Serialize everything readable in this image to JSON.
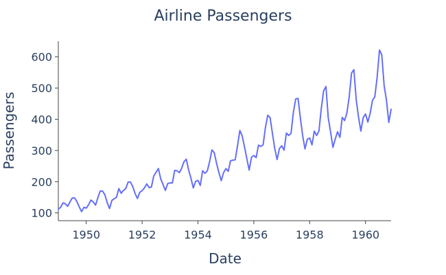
{
  "chart_data": {
    "type": "line",
    "title": "Airline Passengers",
    "xlabel": "Date",
    "ylabel": "Passengers",
    "x_start": "1949-01",
    "x_frequency": "monthly",
    "xlim": [
      "1949-01",
      "1960-12"
    ],
    "ylim": [
      75,
      650
    ],
    "grid": false,
    "legend": "none",
    "x_ticks": [
      1950,
      1952,
      1954,
      1956,
      1958,
      1960
    ],
    "y_ticks": [
      100,
      200,
      300,
      400,
      500,
      600
    ],
    "series": [
      {
        "color": "#636efa",
        "values": [
          112,
          118,
          132,
          129,
          121,
          135,
          148,
          148,
          136,
          119,
          104,
          118,
          115,
          126,
          141,
          135,
          125,
          149,
          170,
          170,
          158,
          133,
          114,
          140,
          145,
          150,
          178,
          163,
          172,
          178,
          199,
          199,
          184,
          162,
          146,
          166,
          171,
          180,
          193,
          181,
          183,
          218,
          230,
          242,
          209,
          191,
          172,
          194,
          196,
          196,
          236,
          235,
          229,
          243,
          264,
          272,
          237,
          211,
          180,
          201,
          204,
          188,
          235,
          227,
          234,
          264,
          302,
          293,
          259,
          229,
          203,
          229,
          242,
          233,
          267,
          269,
          270,
          315,
          364,
          347,
          312,
          274,
          237,
          278,
          284,
          277,
          317,
          313,
          318,
          374,
          413,
          405,
          355,
          306,
          271,
          306,
          315,
          301,
          356,
          348,
          355,
          422,
          465,
          467,
          404,
          347,
          305,
          336,
          340,
          318,
          362,
          348,
          363,
          435,
          491,
          505,
          404,
          359,
          310,
          337,
          360,
          342,
          406,
          396,
          420,
          472,
          548,
          559,
          463,
          407,
          362,
          405,
          417,
          391,
          419,
          461,
          472,
          535,
          622,
          606,
          508,
          461,
          390,
          432
        ]
      }
    ]
  }
}
